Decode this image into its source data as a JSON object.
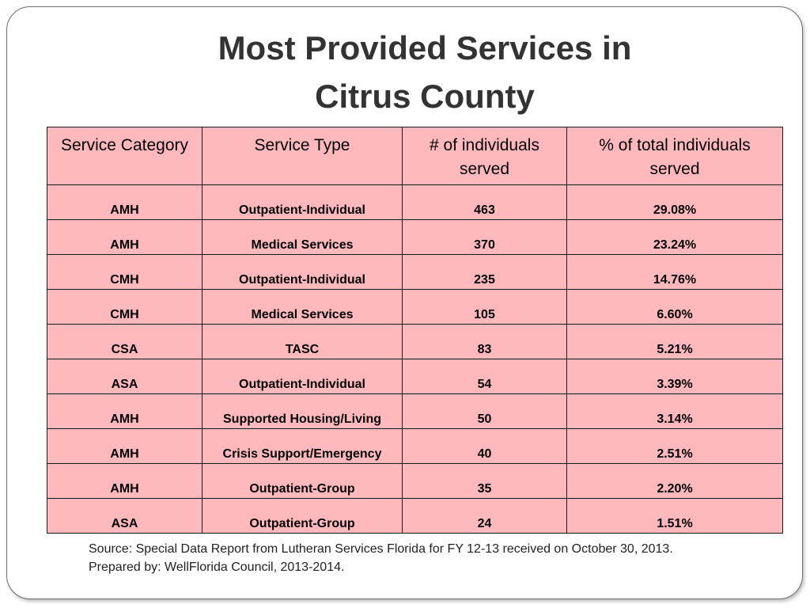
{
  "title": {
    "line1": "Most Provided Services in",
    "line2": "Citrus County"
  },
  "table": {
    "headers": [
      "Service Category",
      "Service Type",
      "# of individuals served",
      "% of total individuals served"
    ],
    "rows": [
      [
        "AMH",
        "Outpatient-Individual",
        "463",
        "29.08%"
      ],
      [
        "AMH",
        "Medical Services",
        "370",
        "23.24%"
      ],
      [
        "CMH",
        "Outpatient-Individual",
        "235",
        "14.76%"
      ],
      [
        "CMH",
        "Medical Services",
        "105",
        "6.60%"
      ],
      [
        "CSA",
        "TASC",
        "83",
        "5.21%"
      ],
      [
        "ASA",
        "Outpatient-Individual",
        "54",
        "3.39%"
      ],
      [
        "AMH",
        "Supported Housing/Living",
        "50",
        "3.14%"
      ],
      [
        "AMH",
        "Crisis Support/Emergency",
        "40",
        "2.51%"
      ],
      [
        "AMH",
        "Outpatient-Group",
        "35",
        "2.20%"
      ],
      [
        "ASA",
        "Outpatient-Group",
        "24",
        "1.51%"
      ]
    ]
  },
  "source": {
    "line1": "Source: Special Data Report from Lutheran Services Florida for FY 12-13 received on October 30, 2013.",
    "line2": "Prepared by: WellFlorida Council, 2013-2014."
  },
  "colors": {
    "table_fill": "#ffb9bd",
    "title_text": "#333333"
  }
}
